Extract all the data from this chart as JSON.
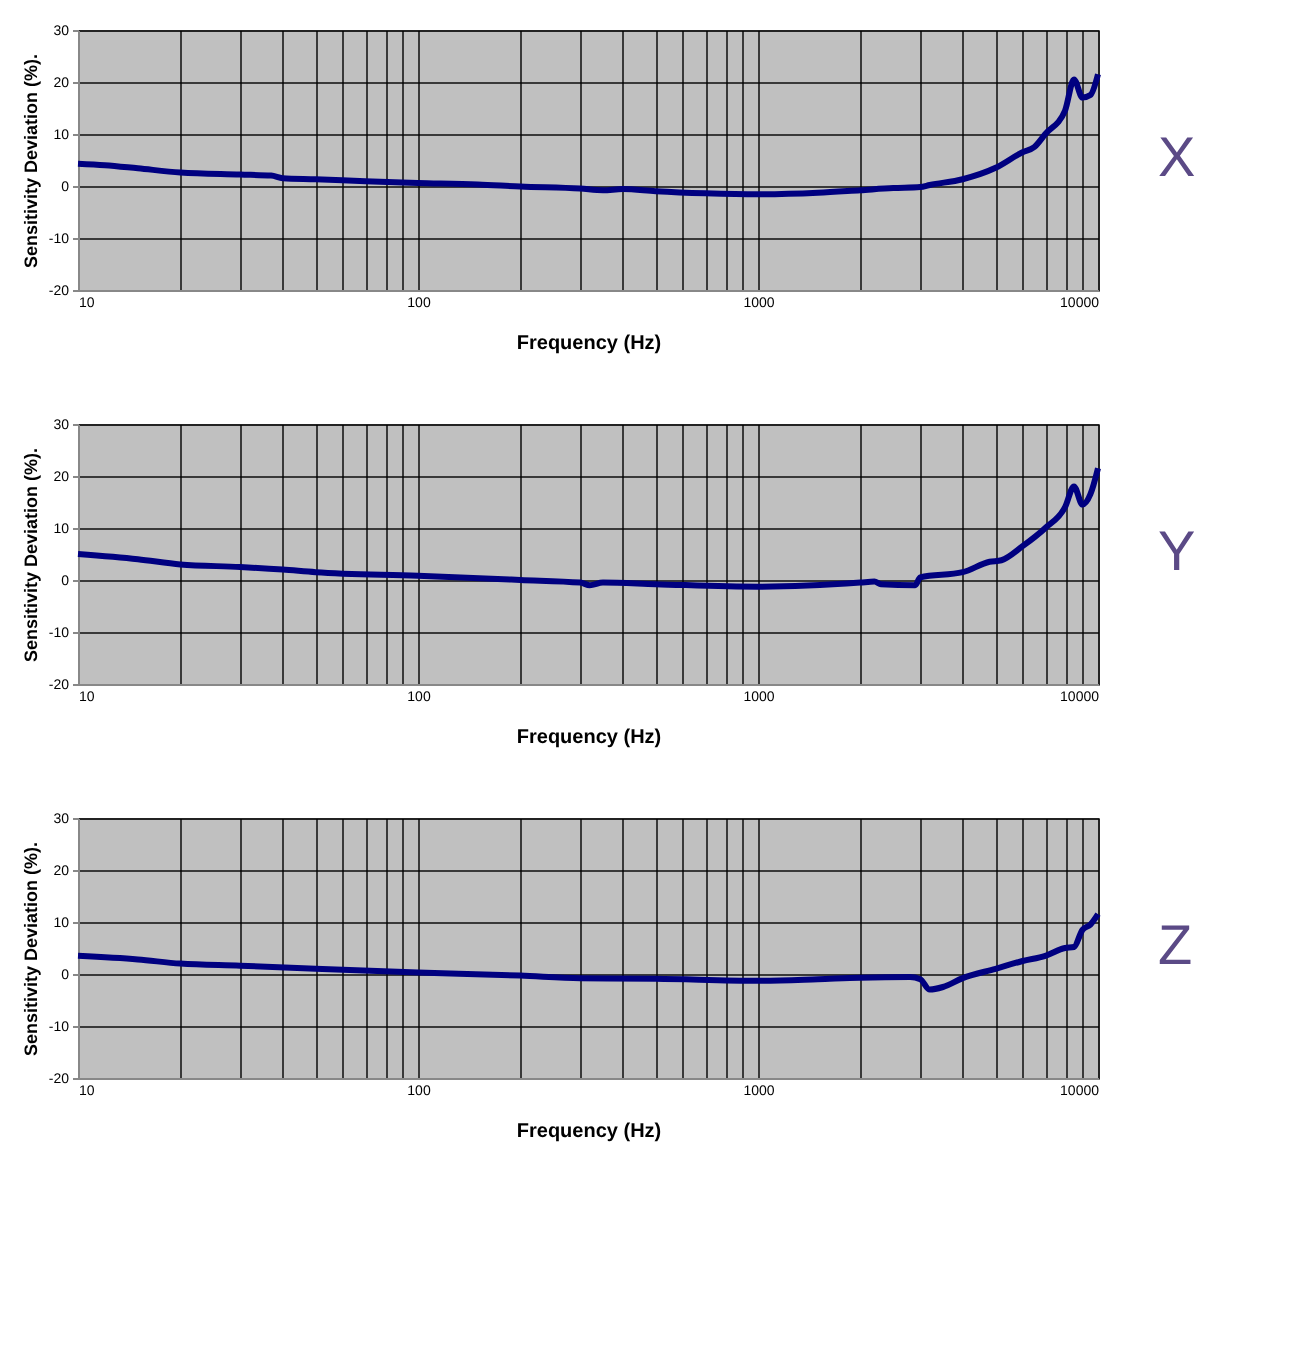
{
  "chart_data": [
    {
      "type": "line",
      "xlabel": "Frequency (Hz)",
      "ylabel": "Sensitivity Deviation (%).",
      "log": "x",
      "grid": true,
      "annotations": [
        "X"
      ],
      "xlim": [
        10,
        10000
      ],
      "ylim": [
        -20,
        30
      ],
      "yticks": [
        -20,
        -10,
        0,
        10,
        20,
        30
      ],
      "xticks": [
        10,
        {
          "value": 20,
          "label": null
        },
        {
          "value": 30,
          "label": null
        },
        {
          "value": 40,
          "label": null
        },
        {
          "value": 50,
          "label": null
        },
        {
          "value": 60,
          "label": null
        },
        {
          "value": 70,
          "label": null
        },
        {
          "value": 80,
          "label": null
        },
        {
          "value": 90,
          "label": null
        },
        100,
        {
          "value": 200,
          "label": null
        },
        {
          "value": 300,
          "label": null
        },
        {
          "value": 400,
          "label": null
        },
        {
          "value": 500,
          "label": null
        },
        {
          "value": 600,
          "label": null
        },
        {
          "value": 700,
          "label": null
        },
        {
          "value": 800,
          "label": null
        },
        {
          "value": 900,
          "label": null
        },
        1000,
        {
          "value": 2000,
          "label": null
        },
        {
          "value": 3000,
          "label": null
        },
        {
          "value": 4000,
          "label": null
        },
        {
          "value": 5000,
          "label": null
        },
        {
          "value": 6000,
          "label": null
        },
        {
          "value": 7000,
          "label": null
        },
        {
          "value": 8000,
          "label": null
        },
        {
          "value": 9000,
          "label": null
        },
        10000
      ],
      "series": [
        {
          "color": "#000080",
          "x": [
            10,
            12,
            15,
            20,
            30,
            37,
            40,
            50,
            70,
            100,
            150,
            200,
            300,
            350,
            400,
            500,
            700,
            1000,
            1500,
            2000,
            2500,
            3000,
            3200,
            4000,
            5000,
            6000,
            6500,
            7000,
            8000,
            8500,
            9000,
            9500,
            10000
          ],
          "values": [
            4.3,
            4.0,
            3.4,
            2.6,
            2.2,
            2.0,
            1.5,
            1.3,
            0.9,
            0.6,
            0.3,
            -0.1,
            -0.5,
            -0.8,
            -0.6,
            -1.0,
            -1.4,
            -1.6,
            -1.3,
            -0.8,
            -0.4,
            -0.2,
            0.2,
            1.3,
            3.5,
            6.5,
            7.5,
            10,
            14.5,
            20.5,
            17,
            17.5,
            21.5
          ]
        }
      ]
    },
    {
      "type": "line",
      "xlabel": "Frequency (Hz)",
      "ylabel": "Sensitivity Deviation (%).",
      "log": "x",
      "grid": true,
      "annotations": [
        "Y"
      ],
      "xlim": [
        10,
        10000
      ],
      "ylim": [
        -20,
        30
      ],
      "yticks": [
        -20,
        -10,
        0,
        10,
        20,
        30
      ],
      "xticks": [
        10,
        {
          "value": 20,
          "label": null
        },
        {
          "value": 30,
          "label": null
        },
        {
          "value": 40,
          "label": null
        },
        {
          "value": 50,
          "label": null
        },
        {
          "value": 60,
          "label": null
        },
        {
          "value": 70,
          "label": null
        },
        {
          "value": 80,
          "label": null
        },
        {
          "value": 90,
          "label": null
        },
        100,
        {
          "value": 200,
          "label": null
        },
        {
          "value": 300,
          "label": null
        },
        {
          "value": 400,
          "label": null
        },
        {
          "value": 500,
          "label": null
        },
        {
          "value": 600,
          "label": null
        },
        {
          "value": 700,
          "label": null
        },
        {
          "value": 800,
          "label": null
        },
        {
          "value": 900,
          "label": null
        },
        1000,
        {
          "value": 2000,
          "label": null
        },
        {
          "value": 3000,
          "label": null
        },
        {
          "value": 4000,
          "label": null
        },
        {
          "value": 5000,
          "label": null
        },
        {
          "value": 6000,
          "label": null
        },
        {
          "value": 7000,
          "label": null
        },
        {
          "value": 8000,
          "label": null
        },
        {
          "value": 9000,
          "label": null
        },
        10000
      ],
      "series": [
        {
          "color": "#000080",
          "x": [
            10,
            15,
            20,
            30,
            40,
            50,
            100,
            200,
            300,
            320,
            350,
            500,
            1000,
            2000,
            2200,
            2300,
            2900,
            3000,
            4000,
            4800,
            5200,
            6000,
            7000,
            8000,
            8500,
            9000,
            9500,
            10000
          ],
          "values": [
            5,
            4,
            3,
            2.5,
            2,
            1.5,
            0.8,
            0,
            -0.5,
            -1.0,
            -0.5,
            -0.8,
            -1.3,
            -0.5,
            -0.3,
            -0.8,
            -1.0,
            0.5,
            1.5,
            3.5,
            3.8,
            6.5,
            10,
            14,
            18,
            14.5,
            16.5,
            21.5
          ]
        }
      ]
    },
    {
      "type": "line",
      "xlabel": "Frequency (Hz)",
      "ylabel": "Sensitivity Deviation (%).",
      "log": "x",
      "grid": true,
      "annotations": [
        "Z"
      ],
      "xlim": [
        10,
        10000
      ],
      "ylim": [
        -20,
        30
      ],
      "yticks": [
        -20,
        -10,
        0,
        10,
        20,
        30
      ],
      "xticks": [
        10,
        {
          "value": 20,
          "label": null
        },
        {
          "value": 30,
          "label": null
        },
        {
          "value": 40,
          "label": null
        },
        {
          "value": 50,
          "label": null
        },
        {
          "value": 60,
          "label": null
        },
        {
          "value": 70,
          "label": null
        },
        {
          "value": 80,
          "label": null
        },
        {
          "value": 90,
          "label": null
        },
        100,
        {
          "value": 200,
          "label": null
        },
        {
          "value": 300,
          "label": null
        },
        {
          "value": 400,
          "label": null
        },
        {
          "value": 500,
          "label": null
        },
        {
          "value": 600,
          "label": null
        },
        {
          "value": 700,
          "label": null
        },
        {
          "value": 800,
          "label": null
        },
        {
          "value": 900,
          "label": null
        },
        1000,
        {
          "value": 2000,
          "label": null
        },
        {
          "value": 3000,
          "label": null
        },
        {
          "value": 4000,
          "label": null
        },
        {
          "value": 5000,
          "label": null
        },
        {
          "value": 6000,
          "label": null
        },
        {
          "value": 7000,
          "label": null
        },
        {
          "value": 8000,
          "label": null
        },
        {
          "value": 9000,
          "label": null
        },
        10000
      ],
      "series": [
        {
          "color": "#000080",
          "x": [
            10,
            15,
            20,
            30,
            50,
            100,
            200,
            300,
            500,
            1000,
            1500,
            2000,
            2800,
            3000,
            3200,
            3500,
            4000,
            5000,
            6000,
            7000,
            8000,
            8500,
            9000,
            9500,
            10000
          ],
          "values": [
            3.5,
            2.8,
            2,
            1.6,
            1.0,
            0.3,
            -0.3,
            -0.8,
            -0.9,
            -1.3,
            -1.0,
            -0.7,
            -0.6,
            -1.0,
            -3,
            -2.5,
            -0.8,
            1.0,
            2.5,
            3.5,
            5.0,
            5.2,
            8.5,
            9.5,
            11.5
          ]
        }
      ]
    }
  ]
}
